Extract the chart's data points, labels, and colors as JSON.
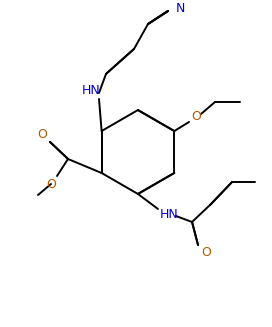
{
  "bg_color": "#ffffff",
  "line_color": "#000000",
  "N_color": "#0000cd",
  "O_color": "#b35900",
  "lw": 1.4,
  "dbo": 0.08,
  "figsize": [
    2.72,
    3.27
  ],
  "dpi": 100,
  "xlim": [
    0,
    272
  ],
  "ylim": [
    0,
    327
  ]
}
